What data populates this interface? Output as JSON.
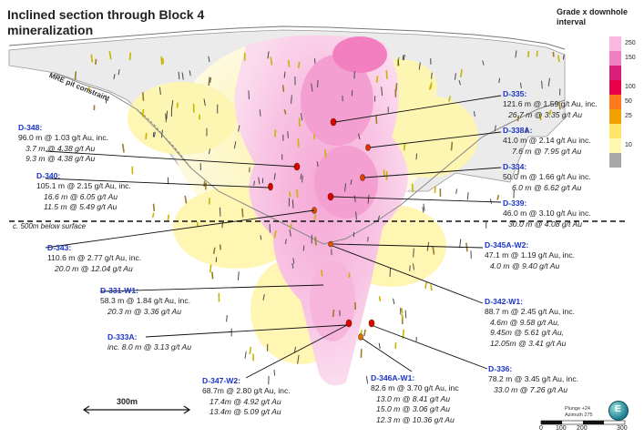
{
  "title": "Inclined section through Block 4 mineralization",
  "legend": {
    "title": "Grade x downhole interval",
    "bins": [
      {
        "label": "250",
        "color": "#fbb8df"
      },
      {
        "label": "150",
        "color": "#f07fc4"
      },
      {
        "label": "",
        "color": "#d81e7a"
      },
      {
        "label": "100",
        "color": "#e8004a"
      },
      {
        "label": "50",
        "color": "#ff7a1a"
      },
      {
        "label": "25",
        "color": "#f4a000"
      },
      {
        "label": "",
        "color": "#ffe46a"
      },
      {
        "label": "10",
        "color": "#fff7ae"
      },
      {
        "label": "",
        "color": "#a8a8a8"
      }
    ]
  },
  "pit_label": "MRE pit constraint",
  "surface_label": "c. 500m below surface",
  "scale_bar": "300m",
  "plunge_text": "Plunge +24",
  "azimuth_text": "Azimuth 275",
  "compass_letter": "E",
  "bottom_scale": [
    "0",
    "100",
    "200",
    "300"
  ],
  "holes": [
    {
      "id": "D-335:",
      "lines": [
        "121.6 m @ 1.59 g/t Au, inc."
      ],
      "italic": [
        "26.7 m @ 3.35 g/t Au"
      ]
    },
    {
      "id": "D-338A:",
      "lines": [
        "41.0 m @ 2.14 g/t Au inc."
      ],
      "italic": [
        "7.6 m @ 7.95 g/t Au"
      ]
    },
    {
      "id": "D-334:",
      "lines": [
        "50.0 m @ 1.66 g/t Au inc."
      ],
      "italic": [
        "6.0 m @ 6.62 g/t Au"
      ]
    },
    {
      "id": "D-339:",
      "lines": [
        "46.0 m @ 3.10 g/t Au inc."
      ],
      "italic": [
        "30.0 m @ 4.08 g/t Au"
      ]
    },
    {
      "id": "D-345A-W2:",
      "lines": [
        "47.1 m @ 1.19 g/t Au, inc."
      ],
      "italic": [
        "4.0 m @ 9.40 g/t Au"
      ]
    },
    {
      "id": "D-342-W1:",
      "lines": [
        "88.7 m @ 2.45 g/t Au, inc."
      ],
      "italic": [
        "4.6m @ 9.58 g/t Au,",
        "9.45m @ 5.61 g/t Au,",
        "12.05m @ 3.41 g/t Au"
      ]
    },
    {
      "id": "D-336:",
      "lines": [
        "78.2 m @ 3.45 g/t Au, inc."
      ],
      "italic": [
        "33.0 m @ 7.26 g/t Au"
      ]
    },
    {
      "id": "D-348:",
      "lines": [
        "96.0 m @ 1.03 g/t Au, inc."
      ],
      "italic": [
        "3.7 m @ 4.38 g/t Au",
        "9.3 m @ 4.38 g/t Au"
      ]
    },
    {
      "id": "D-340:",
      "lines": [
        "105.1 m @ 2.15 g/t Au, inc."
      ],
      "italic": [
        "16.6 m @ 6.05 g/t Au",
        "11.5 m @ 5.49 g/t Au"
      ]
    },
    {
      "id": "D-343:",
      "lines": [
        "110.6 m @ 2.77 g/t Au, inc."
      ],
      "italic": [
        "20.0 m @ 12.04 g/t Au"
      ]
    },
    {
      "id": "D-331-W1:",
      "lines": [
        "58.3 m @ 1.84 g/t Au, inc."
      ],
      "italic": [
        "20.3 m @ 3.36 g/t Au"
      ]
    },
    {
      "id": "D-333A:",
      "lines": [],
      "italic": [
        "inc. 8.0 m @ 3.13 g/t Au"
      ]
    },
    {
      "id": "D-347-W2:",
      "lines": [
        "68.7m @ 2.80 g/t Au, inc."
      ],
      "italic": [
        "17.4m @ 4.92 g/t Au",
        "13.4m @ 5.09 g/t Au"
      ]
    },
    {
      "id": "D-346A-W1:",
      "lines": [
        "82.6 m @ 3.70 g/t Au, inc"
      ],
      "italic": [
        "13.0 m @ 8.41 g/t Au",
        "15.0 m @ 3.06 g/t Au",
        "12.3 m @ 10.36 g/t Au"
      ]
    }
  ]
}
